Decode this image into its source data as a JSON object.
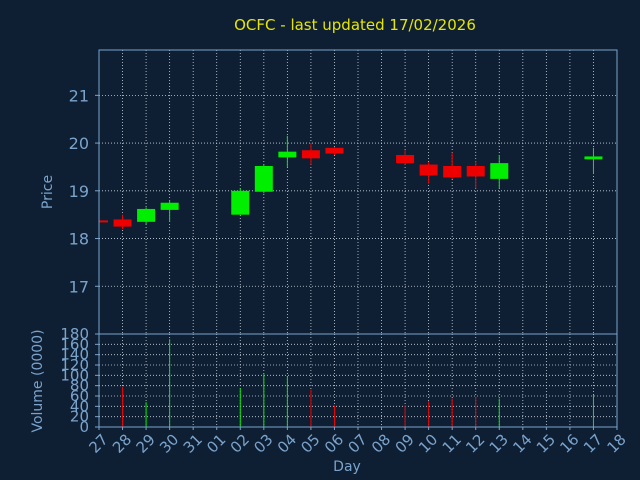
{
  "colors": {
    "background": "#0f1f33",
    "axis": "#7aa3cc",
    "grid": "#c8d4e0",
    "title": "#e6e600",
    "up": "#00ee00",
    "down": "#ee0000"
  },
  "chart_data": [
    {
      "type": "candlestick",
      "title": "OCFC - last updated 17/02/2026",
      "ylabel": "Price",
      "ylim": [
        16.0,
        21.95
      ],
      "yticks": [
        17,
        18,
        19,
        20,
        21
      ],
      "grid": true,
      "x": [
        "27",
        "28",
        "29",
        "30",
        "31",
        "01",
        "02",
        "03",
        "04",
        "05",
        "06",
        "07",
        "08",
        "09",
        "10",
        "11",
        "12",
        "13",
        "14",
        "15",
        "16",
        "17",
        "18"
      ],
      "candles": [
        {
          "day": "27",
          "open": 18.38,
          "high": 18.4,
          "low": 18.35,
          "close": 18.36
        },
        {
          "day": "28",
          "open": 18.4,
          "high": 18.5,
          "low": 18.2,
          "close": 18.25
        },
        {
          "day": "29",
          "open": 18.35,
          "high": 18.65,
          "low": 18.3,
          "close": 18.62
        },
        {
          "day": "30",
          "open": 18.6,
          "high": 18.8,
          "low": 18.35,
          "close": 18.75
        },
        {
          "day": "02",
          "open": 18.5,
          "high": 19.05,
          "low": 18.5,
          "close": 19.0
        },
        {
          "day": "03",
          "open": 18.98,
          "high": 19.55,
          "low": 18.95,
          "close": 19.52
        },
        {
          "day": "04",
          "open": 19.7,
          "high": 20.15,
          "low": 19.5,
          "close": 19.82
        },
        {
          "day": "05",
          "open": 19.85,
          "high": 20.0,
          "low": 19.55,
          "close": 19.68
        },
        {
          "day": "06",
          "open": 19.9,
          "high": 19.92,
          "low": 19.75,
          "close": 19.78
        },
        {
          "day": "09",
          "open": 19.75,
          "high": 19.85,
          "low": 19.55,
          "close": 19.58
        },
        {
          "day": "10",
          "open": 19.55,
          "high": 19.6,
          "low": 19.15,
          "close": 19.32
        },
        {
          "day": "11",
          "open": 19.52,
          "high": 19.8,
          "low": 19.25,
          "close": 19.28
        },
        {
          "day": "12",
          "open": 19.52,
          "high": 19.62,
          "low": 19.05,
          "close": 19.3
        },
        {
          "day": "13",
          "open": 19.25,
          "high": 19.75,
          "low": 19.05,
          "close": 19.58
        },
        {
          "day": "17",
          "open": 19.66,
          "high": 19.9,
          "low": 19.35,
          "close": 19.72
        }
      ]
    },
    {
      "type": "bar",
      "xlabel": "Day",
      "ylabel": "Volume (0000)",
      "ylim": [
        0,
        180
      ],
      "yticks": [
        0,
        20,
        40,
        60,
        80,
        100,
        120,
        140,
        160,
        180
      ],
      "x": [
        "27",
        "28",
        "29",
        "30",
        "31",
        "01",
        "02",
        "03",
        "04",
        "05",
        "06",
        "07",
        "08",
        "09",
        "10",
        "11",
        "12",
        "13",
        "14",
        "15",
        "16",
        "17",
        "18"
      ],
      "series": [
        {
          "values": [
            {
              "day": "27",
              "value": 0,
              "direction": "down"
            },
            {
              "day": "28",
              "value": 78,
              "direction": "down"
            },
            {
              "day": "29",
              "value": 48,
              "direction": "up"
            },
            {
              "day": "30",
              "value": 170,
              "direction": "up"
            },
            {
              "day": "02",
              "value": 75,
              "direction": "up"
            },
            {
              "day": "03",
              "value": 102,
              "direction": "up"
            },
            {
              "day": "04",
              "value": 98,
              "direction": "up"
            },
            {
              "day": "05",
              "value": 72,
              "direction": "down"
            },
            {
              "day": "06",
              "value": 42,
              "direction": "down"
            },
            {
              "day": "09",
              "value": 42,
              "direction": "down"
            },
            {
              "day": "10",
              "value": 50,
              "direction": "down"
            },
            {
              "day": "11",
              "value": 55,
              "direction": "down"
            },
            {
              "day": "12",
              "value": 58,
              "direction": "down"
            },
            {
              "day": "13",
              "value": 55,
              "direction": "up"
            },
            {
              "day": "17",
              "value": 62,
              "direction": "up"
            }
          ]
        }
      ]
    }
  ]
}
